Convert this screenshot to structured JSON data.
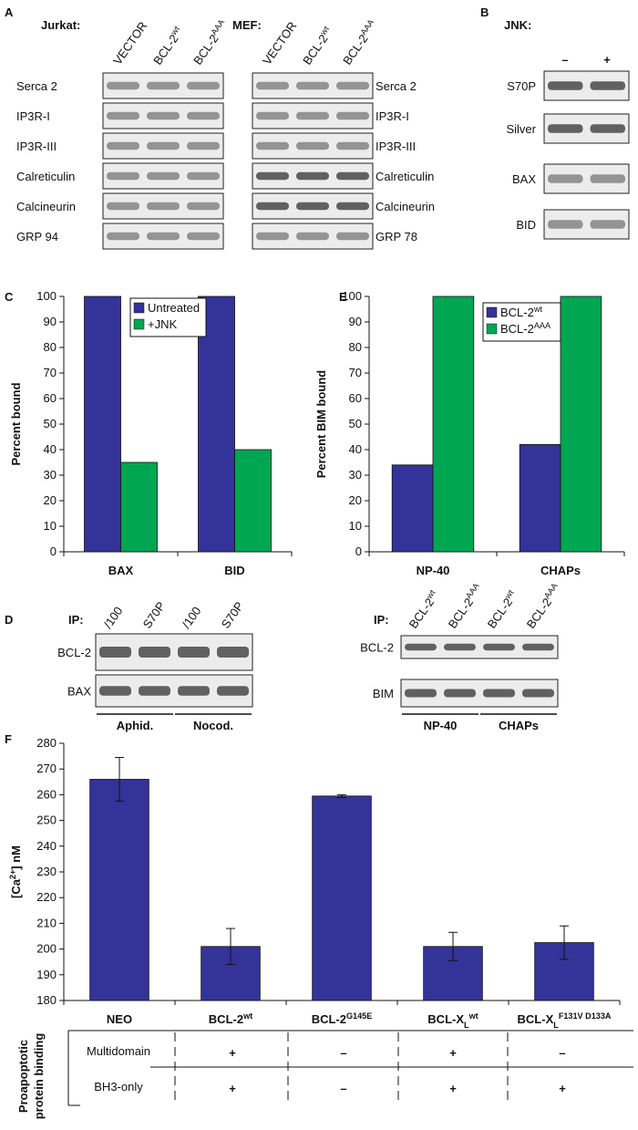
{
  "panels": {
    "a": "A",
    "b": "B",
    "c": "C",
    "d": "D",
    "e": "E",
    "f": "F"
  },
  "blot_a": {
    "jurkat": {
      "title": "Jurkat:",
      "lanes": [
        "VECTOR",
        {
          "base": "BCL-2",
          "sup": "wt"
        },
        {
          "base": "BCL-2",
          "sup": "AAA"
        }
      ],
      "rows": [
        "Serca 2",
        "IP3R-I",
        "IP3R-III",
        "Calreticulin",
        "Calcineurin",
        "GRP 94"
      ]
    },
    "mef": {
      "title": "MEF:",
      "lanes": [
        "VECTOR",
        {
          "base": "BCL-2",
          "sup": "wt"
        },
        {
          "base": "BCL-2",
          "sup": "AAA"
        }
      ],
      "rows": [
        "Serca 2",
        "IP3R-I",
        "IP3R-III",
        "Calreticulin",
        "Calcineurin",
        "GRP 78"
      ]
    }
  },
  "blot_b": {
    "title": "JNK:",
    "lanes": [
      "–",
      "+"
    ],
    "rows": [
      "S70P",
      "Silver",
      "BAX",
      "BID"
    ]
  },
  "blot_d_left": {
    "ip": "IP:",
    "lanes": [
      "/100",
      "S70P",
      "/100",
      "S70P"
    ],
    "rows": [
      "BCL-2",
      "BAX"
    ],
    "groups": [
      "Aphid.",
      "Nocod."
    ]
  },
  "blot_d_right": {
    "ip": "IP:",
    "lanes": [
      {
        "base": "BCL-2",
        "sup": "wt"
      },
      {
        "base": "BCL-2",
        "sup": "AAA"
      },
      {
        "base": "BCL-2",
        "sup": "wt"
      },
      {
        "base": "BCL-2",
        "sup": "AAA"
      }
    ],
    "rows": [
      "BCL-2",
      "BIM"
    ],
    "groups": [
      "NP-40",
      "CHAPs"
    ]
  },
  "chart_data": [
    {
      "type": "bar",
      "ylabel": "Percent bound",
      "categories": [
        "BAX",
        "BID"
      ],
      "series": [
        {
          "name": "Untreated",
          "color": "#333399",
          "values": [
            100,
            100
          ]
        },
        {
          "name": "+JNK",
          "color": "#00a651",
          "values": [
            35,
            40
          ]
        }
      ],
      "ylim": [
        0,
        100
      ],
      "yticks": [
        0,
        10,
        20,
        30,
        40,
        50,
        60,
        70,
        80,
        90,
        100
      ],
      "grid": false
    },
    {
      "type": "bar",
      "ylabel": "Percent BIM bound",
      "categories": [
        "NP-40",
        "CHAPs"
      ],
      "series": [
        {
          "name": {
            "base": "BCL-2",
            "sup": "wt"
          },
          "color": "#333399",
          "values": [
            34,
            42
          ]
        },
        {
          "name": {
            "base": "BCL-2",
            "sup": "AAA"
          },
          "color": "#00a651",
          "values": [
            100,
            100
          ]
        }
      ],
      "ylim": [
        0,
        100
      ],
      "yticks": [
        0,
        10,
        20,
        30,
        40,
        50,
        60,
        70,
        80,
        90,
        100
      ],
      "grid": false
    },
    {
      "type": "bar",
      "ylabel": {
        "base": "[Ca",
        "sup": "2+",
        "tail": "] nM"
      },
      "categories": [
        "NEO",
        {
          "base": "BCL-2",
          "sup": "wt"
        },
        {
          "base": "BCL-2",
          "sup": "G145E"
        },
        {
          "base": "BCL-X",
          "sub": "L",
          "sup": "wt"
        },
        {
          "base": "BCL-X",
          "sub": "L",
          "sup": "F131V D133A"
        }
      ],
      "values": [
        266,
        201,
        259.5,
        201,
        202.5
      ],
      "errors": [
        8.5,
        7,
        0.5,
        5.5,
        6.5
      ],
      "color": "#333399",
      "ylim": [
        180,
        280
      ],
      "yticks": [
        180,
        190,
        200,
        210,
        220,
        230,
        240,
        250,
        260,
        270,
        280
      ],
      "grid": false
    }
  ],
  "table": {
    "title": [
      "Proapoptotic",
      "protein binding"
    ],
    "rows": [
      {
        "label": "Multidomain",
        "cells": [
          "+",
          "–",
          "+",
          "–"
        ]
      },
      {
        "label": "BH3-only",
        "cells": [
          "+",
          "–",
          "+",
          "+"
        ]
      }
    ]
  }
}
